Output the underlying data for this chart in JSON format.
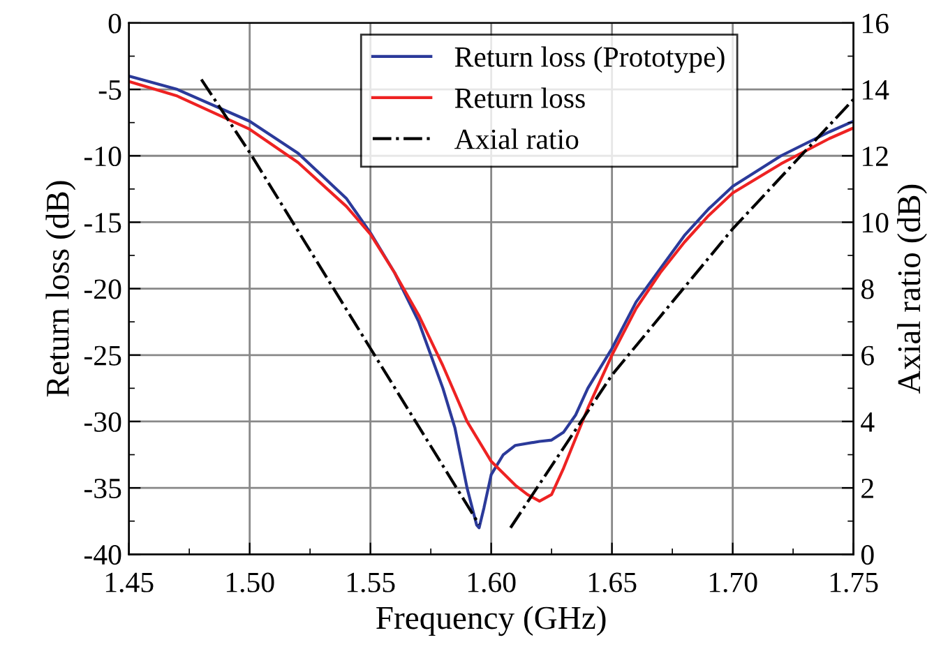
{
  "chart_data": {
    "type": "line",
    "xlabel": "Frequency (GHz)",
    "ylabel": "Return loss (dB)",
    "y2label": "Axial ratio (dB)",
    "xlim": [
      1.45,
      1.75
    ],
    "xticks": [
      {
        "value": 1.45,
        "label": "1.45"
      },
      {
        "value": 1.475,
        "label": null
      },
      {
        "value": 1.5,
        "label": "1.50"
      },
      {
        "value": 1.525,
        "label": null
      },
      {
        "value": 1.55,
        "label": "1.55"
      },
      {
        "value": 1.575,
        "label": null
      },
      {
        "value": 1.6,
        "label": "1.60"
      },
      {
        "value": 1.625,
        "label": null
      },
      {
        "value": 1.65,
        "label": "1.65"
      },
      {
        "value": 1.675,
        "label": null
      },
      {
        "value": 1.7,
        "label": "1.70"
      },
      {
        "value": 1.725,
        "label": null
      },
      {
        "value": 1.75,
        "label": "1.75"
      }
    ],
    "ylim": [
      -40,
      0
    ],
    "yticks": [
      -40,
      {
        "value": -37.5,
        "label": null
      },
      -35,
      {
        "value": -32.5,
        "label": null
      },
      -30,
      {
        "value": -27.5,
        "label": null
      },
      -25,
      {
        "value": -22.5,
        "label": null
      },
      -20,
      {
        "value": -17.5,
        "label": null
      },
      -15,
      {
        "value": -12.5,
        "label": null
      },
      -10,
      {
        "value": -7.5,
        "label": null
      },
      -5,
      {
        "value": -2.5,
        "label": null
      },
      0
    ],
    "y2lim": [
      0,
      16
    ],
    "y2ticks": [
      0,
      {
        "value": 1,
        "label": null
      },
      2,
      {
        "value": 3,
        "label": null
      },
      4,
      {
        "value": 5,
        "label": null
      },
      6,
      {
        "value": 7,
        "label": null
      },
      8,
      {
        "value": 9,
        "label": null
      },
      10,
      {
        "value": 11,
        "label": null
      },
      12,
      {
        "value": 13,
        "label": null
      },
      14,
      {
        "value": 15,
        "label": null
      },
      16
    ],
    "grid": true,
    "legend": "top",
    "series": [
      {
        "name": "Return loss (Prototype)",
        "color": "#2b3a9a",
        "line_style": "solid",
        "x": [
          1.45,
          1.47,
          1.5,
          1.52,
          1.54,
          1.55,
          1.56,
          1.57,
          1.58,
          1.585,
          1.59,
          1.594,
          1.595,
          1.597,
          1.6,
          1.605,
          1.61,
          1.62,
          1.625,
          1.63,
          1.635,
          1.64,
          1.65,
          1.66,
          1.67,
          1.68,
          1.69,
          1.7,
          1.72,
          1.74,
          1.75
        ],
        "values": [
          -4.0,
          -5.0,
          -7.4,
          -9.8,
          -13.2,
          -15.8,
          -18.8,
          -22.5,
          -27.5,
          -30.5,
          -35,
          -37.8,
          -38.0,
          -36.5,
          -34,
          -32.5,
          -31.8,
          -31.5,
          -31.4,
          -30.8,
          -29.5,
          -27.5,
          -24.5,
          -21,
          -18.5,
          -16,
          -14,
          -12.3,
          -10,
          -8.2,
          -7.4
        ]
      },
      {
        "name": "Return loss",
        "color": "#ee2222",
        "line_style": "solid",
        "x": [
          1.45,
          1.47,
          1.5,
          1.52,
          1.54,
          1.55,
          1.56,
          1.57,
          1.58,
          1.59,
          1.6,
          1.61,
          1.615,
          1.62,
          1.625,
          1.63,
          1.64,
          1.65,
          1.66,
          1.67,
          1.68,
          1.69,
          1.7,
          1.72,
          1.74,
          1.75
        ],
        "values": [
          -4.4,
          -5.5,
          -8.0,
          -10.5,
          -13.8,
          -15.9,
          -18.8,
          -22,
          -25.8,
          -30,
          -33.0,
          -34.8,
          -35.5,
          -36.0,
          -35.5,
          -33.5,
          -29,
          -25,
          -21.5,
          -18.8,
          -16.5,
          -14.5,
          -12.8,
          -10.6,
          -8.7,
          -7.9
        ]
      },
      {
        "name": "Axial ratio",
        "color": "#000000",
        "line_style": "dashdot",
        "axis": "y2",
        "x": [
          1.48,
          1.49,
          1.5,
          1.55,
          1.595,
          1.6,
          1.608,
          1.65,
          1.7,
          1.75
        ],
        "values": [
          14.3,
          13.2,
          12.1,
          6.2,
          0.9,
          null,
          0.8,
          5.4,
          9.8,
          13.7
        ]
      }
    ]
  }
}
